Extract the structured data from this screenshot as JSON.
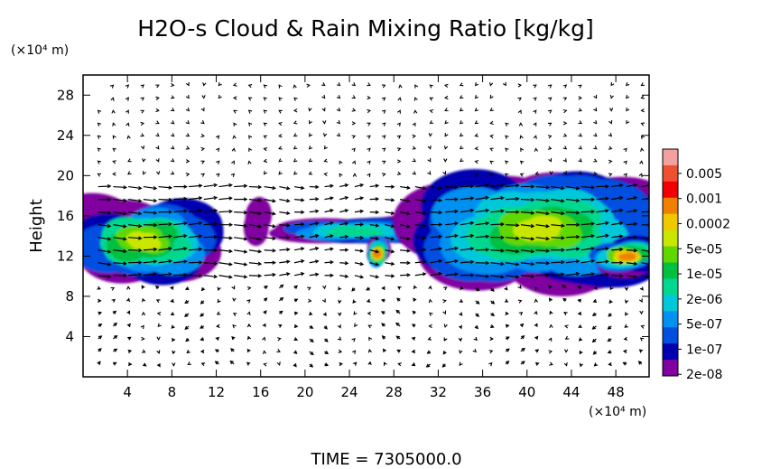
{
  "chart_data": {
    "type": "heatmap",
    "title": "H2O-s Cloud & Rain Mixing Ratio [kg/kg]",
    "ylabel": "Height",
    "y_unit": "(×10⁴ m)",
    "x_unit": "(×10⁴ m)",
    "footer": "TIME  =  7305000.0",
    "xlim": [
      0,
      51
    ],
    "ylim": [
      0,
      30
    ],
    "x_ticks": [
      4,
      8,
      12,
      16,
      20,
      24,
      28,
      32,
      36,
      40,
      44,
      48
    ],
    "y_ticks": [
      4,
      8,
      12,
      16,
      20,
      24,
      28
    ],
    "colorbar": {
      "labels": [
        "0.005",
        "0.001",
        "0.0002",
        "5e-05",
        "1e-05",
        "2e-06",
        "5e-07",
        "1e-07",
        "2e-08"
      ],
      "colors": [
        "#f4a0a0",
        "#f05030",
        "#f00000",
        "#f08000",
        "#f0c800",
        "#c8e600",
        "#60d800",
        "#00c040",
        "#00d890",
        "#00c8d8",
        "#0090f0",
        "#0050e0",
        "#0000b0",
        "#8000a0"
      ]
    },
    "regions": [
      {
        "name": "left-anvil",
        "x": [
          0,
          11
        ],
        "y": [
          10,
          17
        ],
        "level": "5e-05"
      },
      {
        "name": "small-patch",
        "x": [
          14.5,
          16
        ],
        "y": [
          13,
          17
        ],
        "level": "2e-08"
      },
      {
        "name": "thin-layer",
        "x": [
          18,
          31
        ],
        "y": [
          13.5,
          15.5
        ],
        "level": "2e-06"
      },
      {
        "name": "small-cell",
        "x": [
          26,
          27
        ],
        "y": [
          11,
          13.5
        ],
        "level": "0.0002"
      },
      {
        "name": "main-anvil",
        "x": [
          31,
          51
        ],
        "y": [
          10,
          19.5
        ],
        "level": "5e-05"
      },
      {
        "name": "right-core",
        "x": [
          47,
          51
        ],
        "y": [
          10.5,
          13.5
        ],
        "level": "0.0002"
      }
    ]
  }
}
